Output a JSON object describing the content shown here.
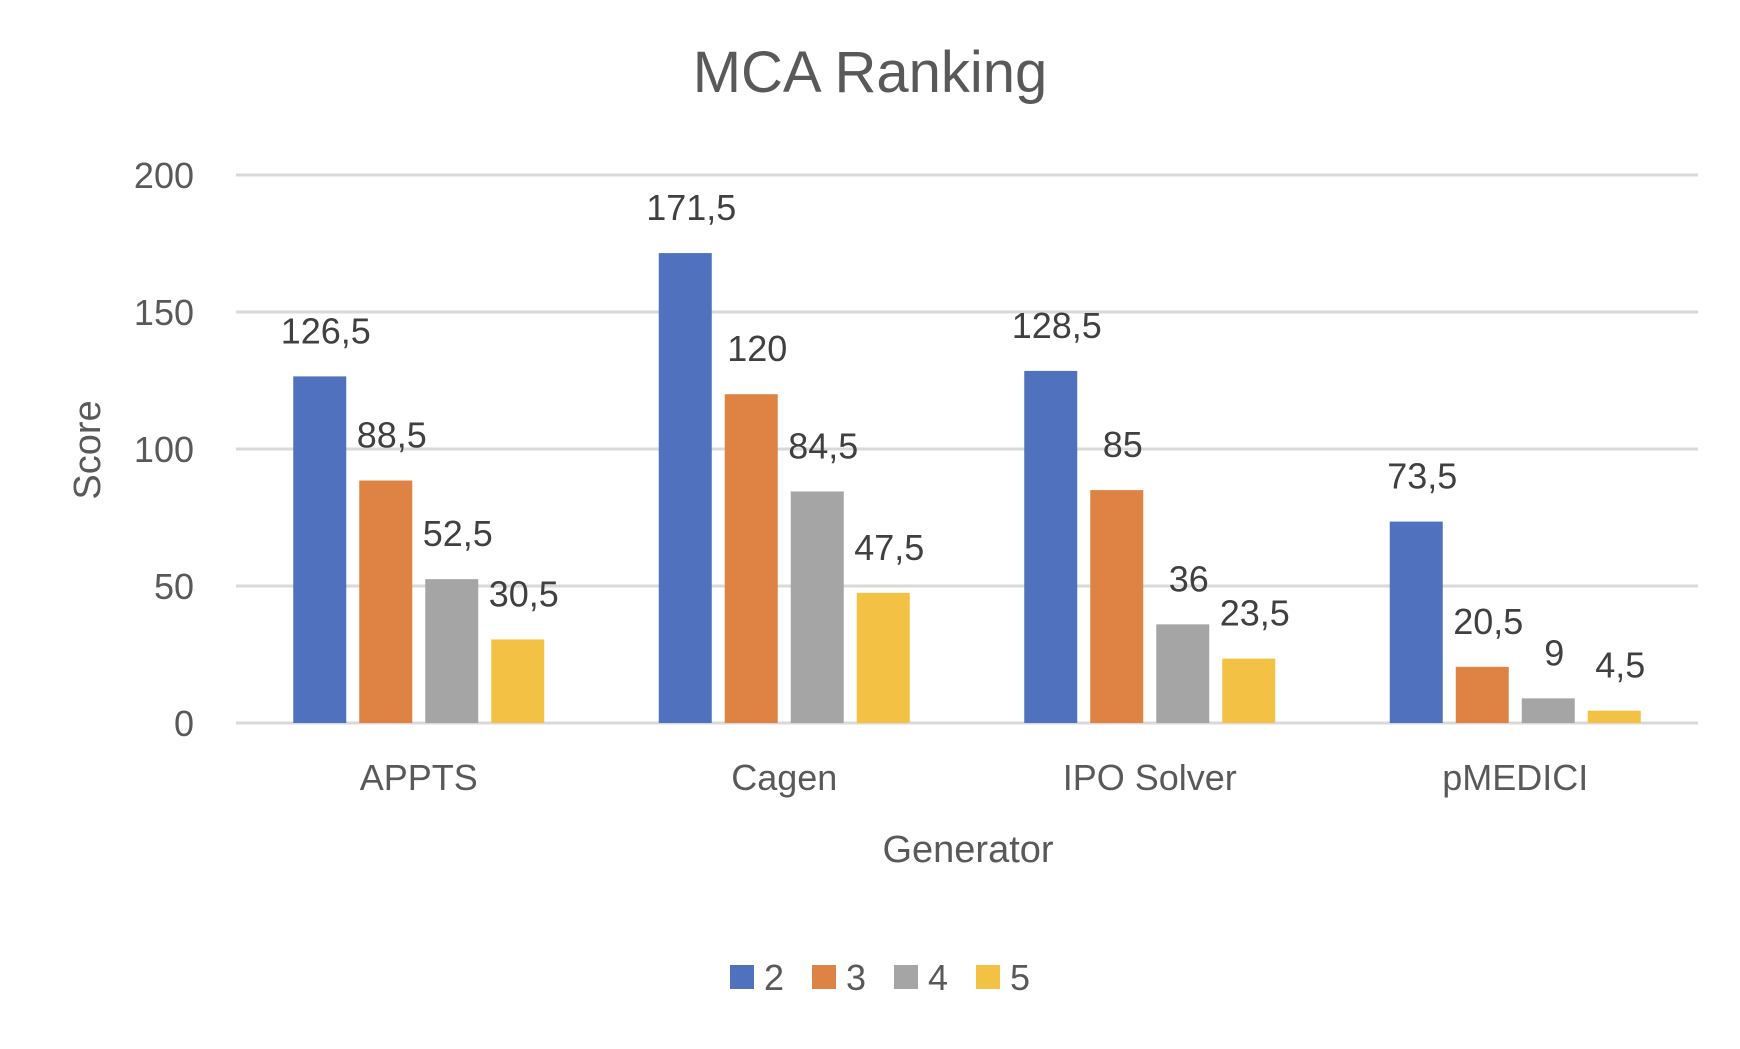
{
  "chart_data": {
    "type": "bar",
    "title": "MCA Ranking",
    "xlabel": "Generator",
    "ylabel": "Score",
    "categories": [
      "APPTS",
      "Cagen",
      "IPO Solver",
      "pMEDICI"
    ],
    "series": [
      {
        "name": "2",
        "color": "#4F71BE",
        "values": [
          126.5,
          171.5,
          128.5,
          73.5
        ],
        "labels": [
          "126,5",
          "171,5",
          "128,5",
          "73,5"
        ]
      },
      {
        "name": "3",
        "color": "#DE8344",
        "values": [
          88.5,
          120,
          85,
          20.5
        ],
        "labels": [
          "88,5",
          "120",
          "85",
          "20,5"
        ]
      },
      {
        "name": "4",
        "color": "#A5A5A5",
        "values": [
          52.5,
          84.5,
          36,
          9
        ],
        "labels": [
          "52,5",
          "84,5",
          "36",
          "9"
        ]
      },
      {
        "name": "5",
        "color": "#F3C143",
        "values": [
          30.5,
          47.5,
          23.5,
          4.5
        ],
        "labels": [
          "30,5",
          "47,5",
          "23,5",
          "4,5"
        ]
      }
    ],
    "ylim": [
      0,
      200
    ],
    "yticks": [
      0,
      50,
      100,
      150,
      200
    ],
    "ytick_labels": [
      "0",
      "50",
      "100",
      "150",
      "200"
    ],
    "grid": true,
    "legend_position": "bottom"
  }
}
